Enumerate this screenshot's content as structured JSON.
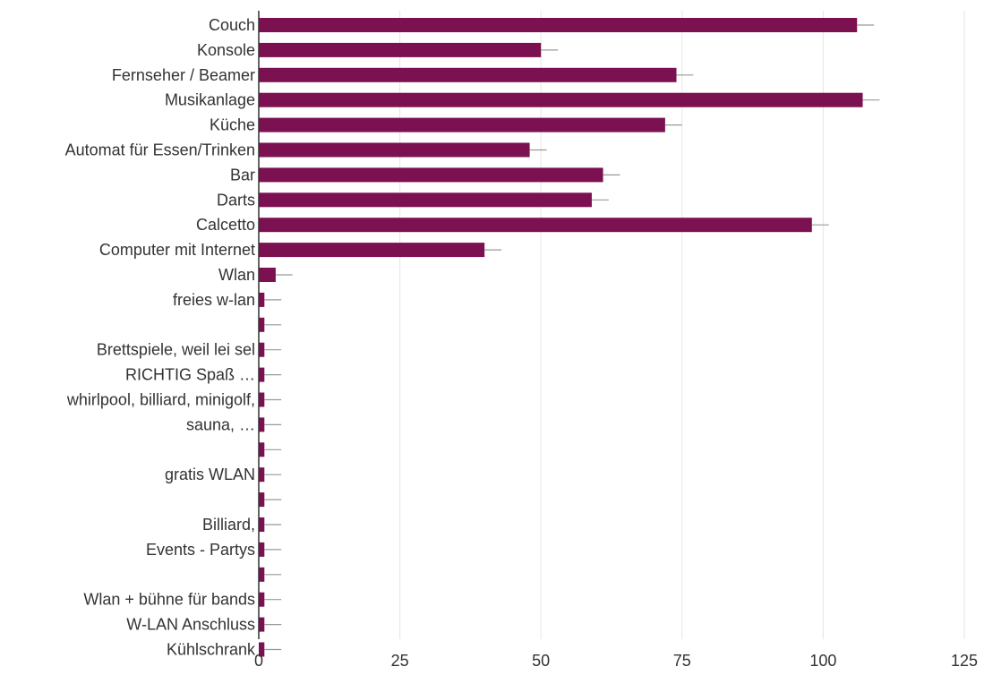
{
  "chart_data": {
    "type": "bar",
    "orientation": "horizontal",
    "title": "",
    "xlabel": "",
    "ylabel": "",
    "xlim": [
      0,
      125
    ],
    "xticks": [
      0,
      25,
      50,
      75,
      100,
      125
    ],
    "grid": true,
    "legend": "none",
    "bar_color": "#7b1150",
    "errorbar_color": "#999999",
    "categories": [
      "Couch",
      "Konsole",
      "Fernseher / Beamer",
      "Musikanlage",
      "Küche",
      "Automat für Essen/Trinken",
      "Bar",
      "Darts",
      "Calcetto",
      "Computer mit Internet",
      "Wlan",
      "freies w-lan",
      "",
      "Brettspiele, weil lei sel",
      "RICHTIG Spaß …",
      "whirlpool, billiard, minigolf,",
      "sauna, …",
      "",
      "gratis WLAN",
      "",
      "Billiard,",
      "Events - Partys",
      "",
      "Wlan + bühne für bands",
      "W-LAN Anschluss",
      "Kühlschrank"
    ],
    "values": [
      106,
      50,
      74,
      107,
      72,
      48,
      61,
      59,
      98,
      40,
      3,
      1,
      1,
      1,
      1,
      1,
      1,
      1,
      1,
      1,
      1,
      1,
      1,
      1,
      1,
      1
    ],
    "error_upper": [
      109,
      53,
      77,
      110,
      75,
      51,
      64,
      62,
      101,
      43,
      6,
      4,
      4,
      4,
      4,
      4,
      4,
      4,
      4,
      4,
      4,
      4,
      4,
      4,
      4,
      4
    ]
  }
}
